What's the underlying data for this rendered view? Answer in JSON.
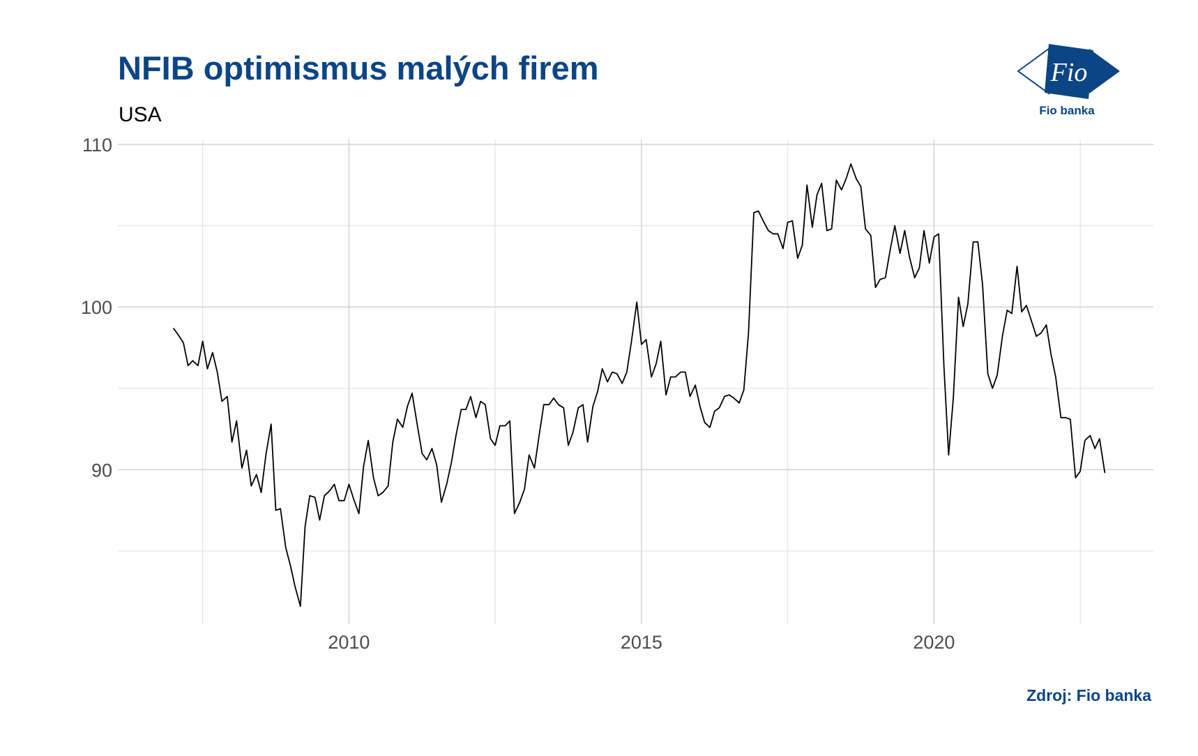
{
  "header": {
    "title": "NFIB optimismus malých firem",
    "subtitle": "USA"
  },
  "logo": {
    "text": "Fio",
    "caption": "Fio banka",
    "color": "#0b4585"
  },
  "footer": {
    "source": "Zdroj: Fio banka"
  },
  "chart_data": {
    "type": "line",
    "title": "NFIB optimismus malých firem",
    "subtitle": "USA",
    "xlabel": "",
    "ylabel": "",
    "xlim": [
      2006.05,
      2023.75
    ],
    "ylim": [
      80.5,
      110.3
    ],
    "x_ticks": [
      2010,
      2015,
      2020
    ],
    "x_ticks_labels": [
      "2010",
      "2015",
      "2020"
    ],
    "y_ticks": [
      90,
      100,
      110
    ],
    "y_ticks_labels": [
      "90",
      "100",
      "110"
    ],
    "x_minor_grid": [
      2007.5,
      2012.5,
      2017.5,
      2022.5
    ],
    "y_minor_grid": [
      85,
      95,
      105
    ],
    "grid": true,
    "line_color": "#000000",
    "series": [
      {
        "values": [
          [
            2007.0,
            98.7
          ],
          [
            2007.08,
            98.3
          ],
          [
            2007.17,
            97.8
          ],
          [
            2007.25,
            96.4
          ],
          [
            2007.33,
            96.7
          ],
          [
            2007.42,
            96.4
          ],
          [
            2007.5,
            97.9
          ],
          [
            2007.58,
            96.2
          ],
          [
            2007.67,
            97.2
          ],
          [
            2007.75,
            96.0
          ],
          [
            2007.83,
            94.2
          ],
          [
            2007.92,
            94.5
          ],
          [
            2008.0,
            91.7
          ],
          [
            2008.08,
            93.0
          ],
          [
            2008.17,
            90.1
          ],
          [
            2008.25,
            91.2
          ],
          [
            2008.33,
            89.0
          ],
          [
            2008.42,
            89.7
          ],
          [
            2008.5,
            88.6
          ],
          [
            2008.58,
            90.9
          ],
          [
            2008.67,
            92.8
          ],
          [
            2008.75,
            87.5
          ],
          [
            2008.83,
            87.6
          ],
          [
            2008.92,
            85.2
          ],
          [
            2009.0,
            84.1
          ],
          [
            2009.08,
            82.8
          ],
          [
            2009.17,
            81.6
          ],
          [
            2009.25,
            86.5
          ],
          [
            2009.33,
            88.4
          ],
          [
            2009.42,
            88.3
          ],
          [
            2009.5,
            86.9
          ],
          [
            2009.58,
            88.4
          ],
          [
            2009.67,
            88.7
          ],
          [
            2009.75,
            89.1
          ],
          [
            2009.83,
            88.1
          ],
          [
            2009.92,
            88.1
          ],
          [
            2010.0,
            89.1
          ],
          [
            2010.08,
            88.2
          ],
          [
            2010.17,
            87.3
          ],
          [
            2010.25,
            90.2
          ],
          [
            2010.33,
            91.8
          ],
          [
            2010.42,
            89.5
          ],
          [
            2010.5,
            88.4
          ],
          [
            2010.58,
            88.6
          ],
          [
            2010.67,
            89.0
          ],
          [
            2010.75,
            91.7
          ],
          [
            2010.83,
            93.1
          ],
          [
            2010.92,
            92.6
          ],
          [
            2011.0,
            93.9
          ],
          [
            2011.08,
            94.7
          ],
          [
            2011.17,
            92.7
          ],
          [
            2011.25,
            91.0
          ],
          [
            2011.33,
            90.6
          ],
          [
            2011.42,
            91.3
          ],
          [
            2011.5,
            90.3
          ],
          [
            2011.58,
            88.0
          ],
          [
            2011.67,
            89.1
          ],
          [
            2011.75,
            90.4
          ],
          [
            2011.83,
            92.1
          ],
          [
            2011.92,
            93.7
          ],
          [
            2012.0,
            93.7
          ],
          [
            2012.08,
            94.5
          ],
          [
            2012.17,
            93.2
          ],
          [
            2012.25,
            94.2
          ],
          [
            2012.33,
            94.0
          ],
          [
            2012.42,
            91.9
          ],
          [
            2012.5,
            91.5
          ],
          [
            2012.58,
            92.7
          ],
          [
            2012.67,
            92.7
          ],
          [
            2012.75,
            93.0
          ],
          [
            2012.83,
            87.3
          ],
          [
            2012.92,
            88.0
          ],
          [
            2013.0,
            88.8
          ],
          [
            2013.08,
            90.9
          ],
          [
            2013.17,
            90.1
          ],
          [
            2013.25,
            92.1
          ],
          [
            2013.33,
            94.0
          ],
          [
            2013.42,
            94.0
          ],
          [
            2013.5,
            94.4
          ],
          [
            2013.58,
            94.0
          ],
          [
            2013.67,
            93.8
          ],
          [
            2013.75,
            91.5
          ],
          [
            2013.83,
            92.3
          ],
          [
            2013.92,
            93.8
          ],
          [
            2014.0,
            94.0
          ],
          [
            2014.08,
            91.7
          ],
          [
            2014.17,
            93.9
          ],
          [
            2014.25,
            94.8
          ],
          [
            2014.33,
            96.2
          ],
          [
            2014.42,
            95.4
          ],
          [
            2014.5,
            96.0
          ],
          [
            2014.58,
            95.9
          ],
          [
            2014.67,
            95.3
          ],
          [
            2014.75,
            96.0
          ],
          [
            2014.83,
            97.9
          ],
          [
            2014.92,
            100.3
          ],
          [
            2015.0,
            97.7
          ],
          [
            2015.08,
            98.0
          ],
          [
            2015.17,
            95.7
          ],
          [
            2015.25,
            96.5
          ],
          [
            2015.33,
            97.9
          ],
          [
            2015.42,
            94.6
          ],
          [
            2015.5,
            95.7
          ],
          [
            2015.58,
            95.7
          ],
          [
            2015.67,
            96.0
          ],
          [
            2015.75,
            96.0
          ],
          [
            2015.83,
            94.5
          ],
          [
            2015.92,
            95.2
          ],
          [
            2016.0,
            93.9
          ],
          [
            2016.08,
            92.9
          ],
          [
            2016.17,
            92.6
          ],
          [
            2016.25,
            93.6
          ],
          [
            2016.33,
            93.8
          ],
          [
            2016.42,
            94.5
          ],
          [
            2016.5,
            94.6
          ],
          [
            2016.58,
            94.4
          ],
          [
            2016.67,
            94.1
          ],
          [
            2016.75,
            94.9
          ],
          [
            2016.83,
            98.4
          ],
          [
            2016.92,
            105.8
          ],
          [
            2017.0,
            105.9
          ],
          [
            2017.08,
            105.3
          ],
          [
            2017.17,
            104.7
          ],
          [
            2017.25,
            104.5
          ],
          [
            2017.33,
            104.5
          ],
          [
            2017.42,
            103.6
          ],
          [
            2017.5,
            105.2
          ],
          [
            2017.58,
            105.3
          ],
          [
            2017.67,
            103.0
          ],
          [
            2017.75,
            103.8
          ],
          [
            2017.83,
            107.5
          ],
          [
            2017.92,
            104.9
          ],
          [
            2018.0,
            106.9
          ],
          [
            2018.08,
            107.6
          ],
          [
            2018.17,
            104.7
          ],
          [
            2018.25,
            104.8
          ],
          [
            2018.33,
            107.8
          ],
          [
            2018.42,
            107.2
          ],
          [
            2018.5,
            107.9
          ],
          [
            2018.58,
            108.8
          ],
          [
            2018.67,
            107.9
          ],
          [
            2018.75,
            107.4
          ],
          [
            2018.83,
            104.8
          ],
          [
            2018.92,
            104.4
          ],
          [
            2019.0,
            101.2
          ],
          [
            2019.08,
            101.7
          ],
          [
            2019.17,
            101.8
          ],
          [
            2019.25,
            103.5
          ],
          [
            2019.33,
            105.0
          ],
          [
            2019.42,
            103.3
          ],
          [
            2019.5,
            104.7
          ],
          [
            2019.58,
            103.1
          ],
          [
            2019.67,
            101.8
          ],
          [
            2019.75,
            102.4
          ],
          [
            2019.83,
            104.7
          ],
          [
            2019.92,
            102.7
          ],
          [
            2020.0,
            104.3
          ],
          [
            2020.08,
            104.5
          ],
          [
            2020.17,
            96.4
          ],
          [
            2020.25,
            90.9
          ],
          [
            2020.33,
            94.4
          ],
          [
            2020.42,
            100.6
          ],
          [
            2020.5,
            98.8
          ],
          [
            2020.58,
            100.2
          ],
          [
            2020.67,
            104.0
          ],
          [
            2020.75,
            104.0
          ],
          [
            2020.83,
            101.4
          ],
          [
            2020.92,
            95.9
          ],
          [
            2021.0,
            95.0
          ],
          [
            2021.08,
            95.8
          ],
          [
            2021.17,
            98.2
          ],
          [
            2021.25,
            99.8
          ],
          [
            2021.33,
            99.6
          ],
          [
            2021.42,
            102.5
          ],
          [
            2021.5,
            99.7
          ],
          [
            2021.58,
            100.1
          ],
          [
            2021.67,
            99.1
          ],
          [
            2021.75,
            98.2
          ],
          [
            2021.83,
            98.4
          ],
          [
            2021.92,
            98.9
          ],
          [
            2022.0,
            97.1
          ],
          [
            2022.08,
            95.7
          ],
          [
            2022.17,
            93.2
          ],
          [
            2022.25,
            93.2
          ],
          [
            2022.33,
            93.1
          ],
          [
            2022.42,
            89.5
          ],
          [
            2022.5,
            89.9
          ],
          [
            2022.58,
            91.8
          ],
          [
            2022.67,
            92.1
          ],
          [
            2022.75,
            91.3
          ],
          [
            2022.83,
            91.9
          ],
          [
            2022.92,
            89.8
          ]
        ]
      }
    ]
  }
}
